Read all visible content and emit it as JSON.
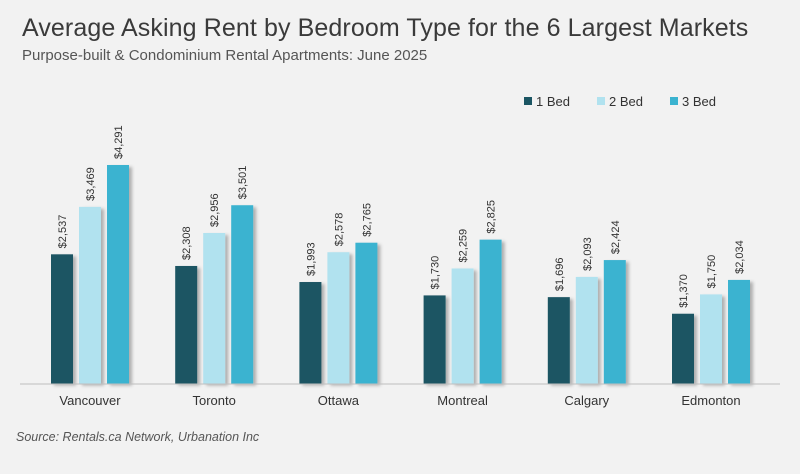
{
  "title": "Average Asking Rent by Bedroom Type for the 6 Largest Markets",
  "subtitle": "Purpose-built & Condominium Rental Apartments: June 2025",
  "source": "Source: Rentals.ca Network, Urbanation Inc",
  "chart_data": {
    "type": "bar",
    "categories": [
      "Vancouver",
      "Toronto",
      "Ottawa",
      "Montreal",
      "Calgary",
      "Edmonton"
    ],
    "series": [
      {
        "name": "1 Bed",
        "color": "#1b5563",
        "values": [
          2537,
          2308,
          1993,
          1730,
          1696,
          1370
        ],
        "labels": [
          "$2,537",
          "$2,308",
          "$1,993",
          "$1,730",
          "$1,696",
          "$1,370"
        ]
      },
      {
        "name": "2 Bed",
        "color": "#b1e2ef",
        "values": [
          3469,
          2956,
          2578,
          2259,
          2093,
          1750
        ],
        "labels": [
          "$3,469",
          "$2,956",
          "$2,578",
          "$2,259",
          "$2,093",
          "$1,750"
        ]
      },
      {
        "name": "3 Bed",
        "color": "#3bb3d0",
        "values": [
          4291,
          3501,
          2765,
          2825,
          2424,
          2034
        ],
        "labels": [
          "$4,291",
          "$3,501",
          "$2,765",
          "$2,825",
          "$2,424",
          "$2,034"
        ]
      }
    ],
    "ylim": [
      0,
      4291
    ],
    "legend_position": "top-right",
    "grid": false
  }
}
